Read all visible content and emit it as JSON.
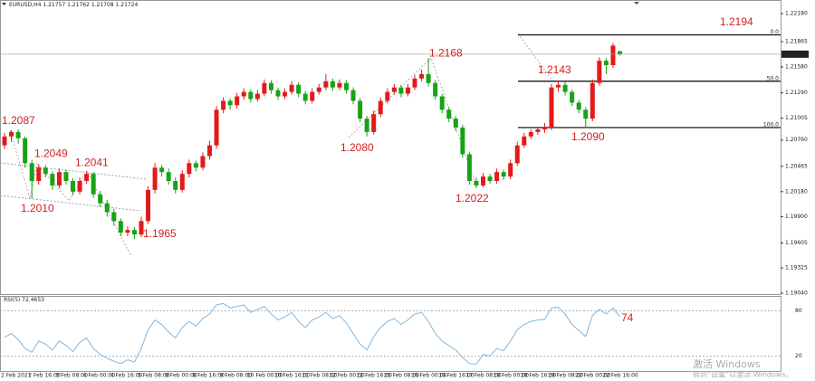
{
  "chart_data": {
    "type": "candlestick",
    "symbol": "EURUSD,H4",
    "up_color": "#e31a1a",
    "down_color": "#17a317",
    "ylim": [
      1.1903,
      1.22332
    ],
    "yticks": [
      {
        "value": 1.2218,
        "label": "1.22180"
      },
      {
        "value": 1.21865,
        "label": "1.21865"
      },
      {
        "value": 1.2158,
        "label": "1.21580"
      },
      {
        "value": 1.2129,
        "label": "1.21290"
      },
      {
        "value": 1.21005,
        "label": "1.21005"
      },
      {
        "value": 1.2076,
        "label": "1.20760"
      },
      {
        "value": 1.20465,
        "label": "1.20465"
      },
      {
        "value": 1.2018,
        "label": "1.20180"
      },
      {
        "value": 1.199,
        "label": "1.19900"
      },
      {
        "value": 1.19605,
        "label": "1.19605"
      },
      {
        "value": 1.19325,
        "label": "1.19325"
      },
      {
        "value": 1.1904,
        "label": "1.19040"
      }
    ],
    "times": [
      "2 Feb 2021",
      "2 Feb 16:00",
      "3 Feb 08:00",
      "4 Feb 00:00",
      "4 Feb 16:00",
      "5 Feb 08:00",
      "8 Feb 00:00",
      "8 Feb 16:00",
      "9 Feb 08:00",
      "10 Feb 00:00",
      "10 Feb 16:00",
      "11 Feb 08:00",
      "12 Feb 00:00",
      "12 Feb 16:00",
      "15 Feb 08:00",
      "16 Feb 00:00",
      "16 Feb 16:00",
      "17 Feb 08:00",
      "18 Feb 00:00",
      "18 Feb 16:00",
      "19 Feb 08:00",
      "22 Feb 00:00",
      "22 Feb 16:00"
    ],
    "ohlc": [
      [
        1.207,
        1.2084,
        1.2066,
        1.208
      ],
      [
        1.208,
        1.2087,
        1.2074,
        1.2085
      ],
      [
        1.2085,
        1.2088,
        1.2072,
        1.2078
      ],
      [
        1.2078,
        1.208,
        1.2045,
        1.205
      ],
      [
        1.205,
        1.2054,
        1.201,
        1.203
      ],
      [
        1.203,
        1.2049,
        1.2026,
        1.2045
      ],
      [
        1.2045,
        1.2048,
        1.2034,
        1.2038
      ],
      [
        1.2038,
        1.2041,
        1.202,
        1.2025
      ],
      [
        1.2025,
        1.2044,
        1.2022,
        1.204
      ],
      [
        1.204,
        1.2043,
        1.2026,
        1.203
      ],
      [
        1.203,
        1.2033,
        1.2014,
        1.2018
      ],
      [
        1.2018,
        1.2034,
        1.2015,
        1.203
      ],
      [
        1.203,
        1.2041,
        1.2027,
        1.2038
      ],
      [
        1.2038,
        1.204,
        1.2011,
        1.2015
      ],
      [
        1.2015,
        1.2019,
        1.2001,
        1.2005
      ],
      [
        1.2005,
        1.2009,
        1.199,
        1.1995
      ],
      [
        1.1995,
        1.1999,
        1.198,
        1.1985
      ],
      [
        1.1985,
        1.1988,
        1.1968,
        1.1972
      ],
      [
        1.1972,
        1.1979,
        1.1968,
        1.1975
      ],
      [
        1.1975,
        1.1978,
        1.1965,
        1.197
      ],
      [
        1.197,
        1.199,
        1.1967,
        1.1985
      ],
      [
        1.1985,
        1.2024,
        1.1982,
        1.202
      ],
      [
        1.202,
        1.205,
        1.2016,
        1.2045
      ],
      [
        1.2045,
        1.2048,
        1.2035,
        1.204
      ],
      [
        1.204,
        1.2044,
        1.2026,
        1.203
      ],
      [
        1.203,
        1.2034,
        1.2016,
        1.202
      ],
      [
        1.202,
        1.2042,
        1.2017,
        1.2038
      ],
      [
        1.2038,
        1.2054,
        1.2034,
        1.205
      ],
      [
        1.205,
        1.2053,
        1.2041,
        1.2045
      ],
      [
        1.2045,
        1.2062,
        1.2042,
        1.2058
      ],
      [
        1.2058,
        1.2075,
        1.2054,
        1.207
      ],
      [
        1.207,
        1.2114,
        1.2066,
        1.211
      ],
      [
        1.211,
        1.2124,
        1.2106,
        1.212
      ],
      [
        1.212,
        1.2123,
        1.211,
        1.2115
      ],
      [
        1.2115,
        1.2129,
        1.2111,
        1.2125
      ],
      [
        1.2125,
        1.2134,
        1.2121,
        1.213
      ],
      [
        1.213,
        1.2133,
        1.2118,
        1.2122
      ],
      [
        1.2122,
        1.2132,
        1.2119,
        1.2128
      ],
      [
        1.2128,
        1.2144,
        1.2125,
        1.214
      ],
      [
        1.214,
        1.2143,
        1.2128,
        1.2132
      ],
      [
        1.2132,
        1.2135,
        1.2121,
        1.2125
      ],
      [
        1.2125,
        1.2134,
        1.2122,
        1.213
      ],
      [
        1.213,
        1.2142,
        1.2127,
        1.2138
      ],
      [
        1.2138,
        1.2141,
        1.2124,
        1.2128
      ],
      [
        1.2128,
        1.2131,
        1.2116,
        1.212
      ],
      [
        1.212,
        1.2134,
        1.2117,
        1.213
      ],
      [
        1.213,
        1.2139,
        1.2127,
        1.2135
      ],
      [
        1.2135,
        1.215,
        1.2132,
        1.2142
      ],
      [
        1.2142,
        1.2145,
        1.2131,
        1.2135
      ],
      [
        1.2135,
        1.2144,
        1.2132,
        1.214
      ],
      [
        1.214,
        1.2143,
        1.2128,
        1.2132
      ],
      [
        1.2132,
        1.2135,
        1.2116,
        1.212
      ],
      [
        1.212,
        1.2123,
        1.2096,
        1.21
      ],
      [
        1.21,
        1.2103,
        1.208,
        1.2085
      ],
      [
        1.2085,
        1.2109,
        1.2082,
        1.2105
      ],
      [
        1.2105,
        1.2124,
        1.2102,
        1.212
      ],
      [
        1.212,
        1.2134,
        1.2117,
        1.213
      ],
      [
        1.213,
        1.2139,
        1.2127,
        1.2135
      ],
      [
        1.2135,
        1.2138,
        1.2124,
        1.2128
      ],
      [
        1.2128,
        1.2139,
        1.2125,
        1.2135
      ],
      [
        1.2135,
        1.2149,
        1.2132,
        1.2145
      ],
      [
        1.2145,
        1.2155,
        1.2142,
        1.215
      ],
      [
        1.215,
        1.2168,
        1.2136,
        1.214
      ],
      [
        1.214,
        1.2143,
        1.2121,
        1.2125
      ],
      [
        1.2125,
        1.2128,
        1.2106,
        1.211
      ],
      [
        1.211,
        1.2113,
        1.2096,
        1.21
      ],
      [
        1.21,
        1.2103,
        1.2086,
        1.209
      ],
      [
        1.209,
        1.2093,
        1.2056,
        1.206
      ],
      [
        1.206,
        1.2063,
        1.2026,
        1.203
      ],
      [
        1.203,
        1.2034,
        1.2022,
        1.2025
      ],
      [
        1.2025,
        1.2039,
        1.2023,
        1.2035
      ],
      [
        1.2035,
        1.2038,
        1.2027,
        1.203
      ],
      [
        1.203,
        1.2044,
        1.2027,
        1.204
      ],
      [
        1.204,
        1.2043,
        1.2031,
        1.2035
      ],
      [
        1.2035,
        1.2054,
        1.2032,
        1.205
      ],
      [
        1.205,
        1.2074,
        1.2047,
        1.207
      ],
      [
        1.207,
        1.2084,
        1.2067,
        1.208
      ],
      [
        1.208,
        1.2088,
        1.2077,
        1.2085
      ],
      [
        1.2085,
        1.2091,
        1.2082,
        1.2088
      ],
      [
        1.2088,
        1.2095,
        1.2084,
        1.209
      ],
      [
        1.209,
        1.2139,
        1.2087,
        1.2135
      ],
      [
        1.2135,
        1.2143,
        1.213,
        1.2138
      ],
      [
        1.2138,
        1.2141,
        1.2126,
        1.213
      ],
      [
        1.213,
        1.2133,
        1.2114,
        1.2118
      ],
      [
        1.2118,
        1.2121,
        1.2106,
        1.211
      ],
      [
        1.211,
        1.2113,
        1.209,
        1.21
      ],
      [
        1.21,
        1.2144,
        1.2097,
        1.214
      ],
      [
        1.214,
        1.2169,
        1.2137,
        1.2165
      ],
      [
        1.2165,
        1.2168,
        1.215,
        1.216
      ],
      [
        1.216,
        1.2185,
        1.2157,
        1.2182
      ],
      [
        1.21757,
        1.21762,
        1.21708,
        1.21724
      ]
    ],
    "annotations": [
      {
        "value": 1.2087,
        "label": "1.2087"
      },
      {
        "value": 1.2049,
        "label": "1.2049"
      },
      {
        "value": 1.2041,
        "label": "1.2041"
      },
      {
        "value": 1.201,
        "label": "1.2010"
      },
      {
        "value": 1.1965,
        "label": "1.1965"
      },
      {
        "value": 1.208,
        "label": "1.2080"
      },
      {
        "value": 1.2168,
        "label": "1.2168"
      },
      {
        "value": 1.2022,
        "label": "1.2022"
      },
      {
        "value": 1.2143,
        "label": "1.2143"
      },
      {
        "value": 1.209,
        "label": "1.2090"
      },
      {
        "value": 1.2194,
        "label": "1.2194"
      }
    ],
    "annotation_color": "#d42020",
    "fib": {
      "high": 1.2194,
      "low": 1.209,
      "levels": [
        {
          "value": 0,
          "label": "0.0"
        },
        {
          "value": 50,
          "label": "50.0"
        },
        {
          "value": 100,
          "label": "100.0"
        }
      ]
    },
    "rsi": {
      "name": "RSI(5)",
      "color": "#7fb7e0",
      "ylim": [
        0,
        100
      ],
      "yticks": [
        80,
        20
      ],
      "annotation": 74,
      "values": [
        45,
        50,
        42,
        30,
        25,
        40,
        36,
        28,
        40,
        34,
        26,
        38,
        44,
        30,
        22,
        17,
        13,
        10,
        15,
        12,
        30,
        55,
        68,
        62,
        52,
        44,
        58,
        66,
        60,
        70,
        76,
        88,
        90,
        84,
        86,
        88,
        78,
        82,
        86,
        76,
        68,
        72,
        78,
        66,
        58,
        68,
        72,
        78,
        70,
        74,
        64,
        50,
        36,
        28,
        46,
        58,
        66,
        70,
        62,
        68,
        76,
        78,
        66,
        50,
        40,
        34,
        28,
        18,
        10,
        9,
        22,
        20,
        30,
        27,
        40,
        55,
        62,
        66,
        68,
        69,
        84,
        85,
        76,
        62,
        54,
        46,
        74,
        82,
        76,
        84,
        72.4653
      ]
    },
    "watermark": [
      "激活 Windows",
      "转到“设置”以激活 Windows。"
    ]
  }
}
